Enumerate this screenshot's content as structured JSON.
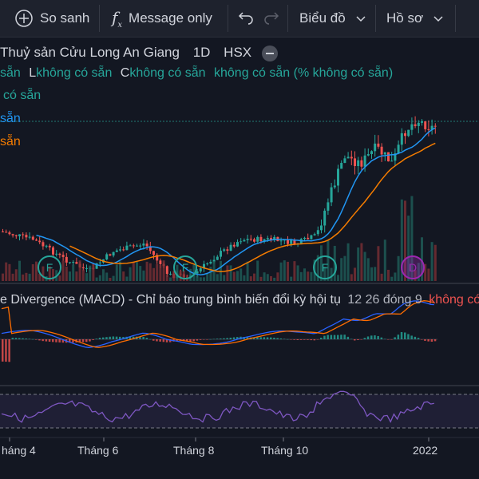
{
  "toolbar": {
    "compare_label": "So sanh",
    "message_label": "Message only",
    "chart_type_label": "Biểu đồ",
    "profile_label": "Hồ sơ",
    "icons": [
      "compare-plus-icon",
      "fx-icon",
      "undo-icon",
      "redo-icon",
      "chevron-down-icon"
    ]
  },
  "legend": {
    "symbol_name": "Thuỷ sản Cửu Long An Giang",
    "interval": "1D",
    "exchange": "HSX",
    "ohlc_tail": "sẵn",
    "l_label": "L",
    "l_value": "không có sẵn",
    "c_label": "C",
    "c_value": "không có sẵn",
    "change_value": "không có sẵn",
    "change_pct": "(% không có sẵn)",
    "volume_text": "có sẵn",
    "ma1_text": "sẵn",
    "ma2_text": "sẵn"
  },
  "macd": {
    "title": "e Divergence (MACD) - Chỉ báo trung bình biến đổi kỳ hội tụ",
    "params": "12 26 đóng 9",
    "value": "không có s"
  },
  "markers": [
    {
      "label": "F",
      "color": "#26a69a"
    },
    {
      "label": "F",
      "color": "#26a69a"
    },
    {
      "label": "F",
      "color": "#26a69a"
    },
    {
      "label": "D",
      "color": "#9c27b0"
    }
  ],
  "xaxis": [
    "háng 4",
    "Tháng 6",
    "Tháng 8",
    "Tháng 10",
    "2022"
  ]
}
